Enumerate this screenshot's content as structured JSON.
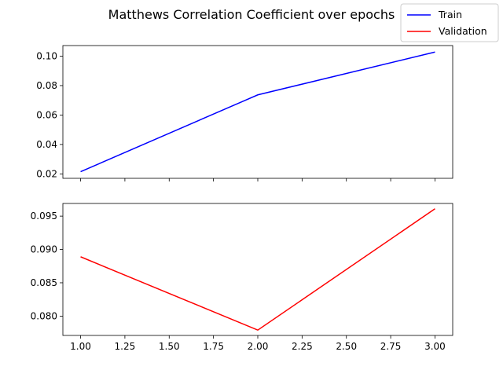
{
  "chart_data": {
    "type": "line",
    "title": "Matthews Correlation Coefficient over epochs",
    "legend": {
      "placement": "top-right",
      "entries": [
        {
          "label": "Train",
          "color": "#0000ff"
        },
        {
          "label": "Validation",
          "color": "#ff0000"
        }
      ]
    },
    "grid": false,
    "shared_x": true,
    "x": [
      1.0,
      2.0,
      3.0
    ],
    "x_ticks": [
      "1.00",
      "1.25",
      "1.50",
      "1.75",
      "2.00",
      "2.25",
      "2.50",
      "2.75",
      "3.00"
    ],
    "xlim": [
      0.9,
      3.1
    ],
    "subplots": [
      {
        "name": "train-subplot",
        "series": [
          {
            "name": "Train",
            "color": "#0000ff",
            "values": [
              0.0215,
              0.0737,
              0.1028
            ]
          }
        ],
        "ylim": [
          0.017,
          0.1072
        ],
        "y_ticks": [
          "0.02",
          "0.04",
          "0.06",
          "0.08",
          "0.10"
        ]
      },
      {
        "name": "validation-subplot",
        "series": [
          {
            "name": "Validation",
            "color": "#ff0000",
            "values": [
              0.0889,
              0.0779,
              0.0961
            ]
          }
        ],
        "ylim": [
          0.0771,
          0.0969
        ],
        "y_ticks": [
          "0.080",
          "0.085",
          "0.090",
          "0.095"
        ]
      }
    ]
  }
}
